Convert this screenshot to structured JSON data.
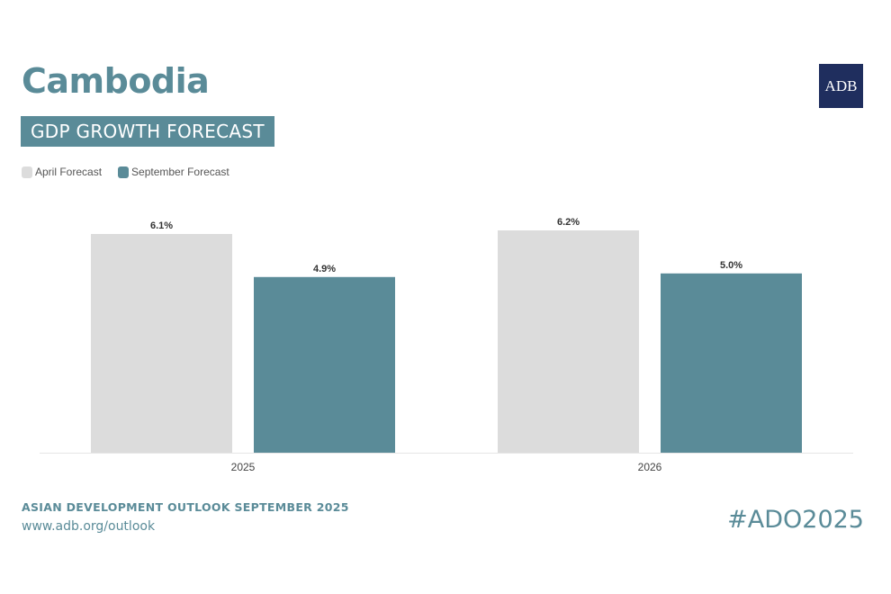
{
  "header": {
    "title": "Cambodia",
    "subtitle": "GDP GROWTH FORECAST",
    "logo_text": "ADB"
  },
  "legend": [
    {
      "label": "April Forecast",
      "color": "#dcdcdc"
    },
    {
      "label": "September Forecast",
      "color": "#5a8b98"
    }
  ],
  "footer": {
    "title": "ASIAN DEVELOPMENT OUTLOOK SEPTEMBER 2025",
    "url": "www.adb.org/outlook",
    "hashtag": "#ADO2025"
  },
  "chart_data": {
    "type": "bar",
    "categories": [
      "2025",
      "2026"
    ],
    "series": [
      {
        "name": "April Forecast",
        "values": [
          6.1,
          6.2
        ],
        "labels": [
          "6.1%",
          "6.2%"
        ],
        "color": "#dcdcdc"
      },
      {
        "name": "September Forecast",
        "values": [
          4.9,
          5.0
        ],
        "labels": [
          "4.9%",
          "5.0%"
        ],
        "color": "#5a8b98"
      }
    ],
    "ylim": [
      0,
      6.2
    ],
    "grid": false,
    "legend_position": "top-left"
  }
}
